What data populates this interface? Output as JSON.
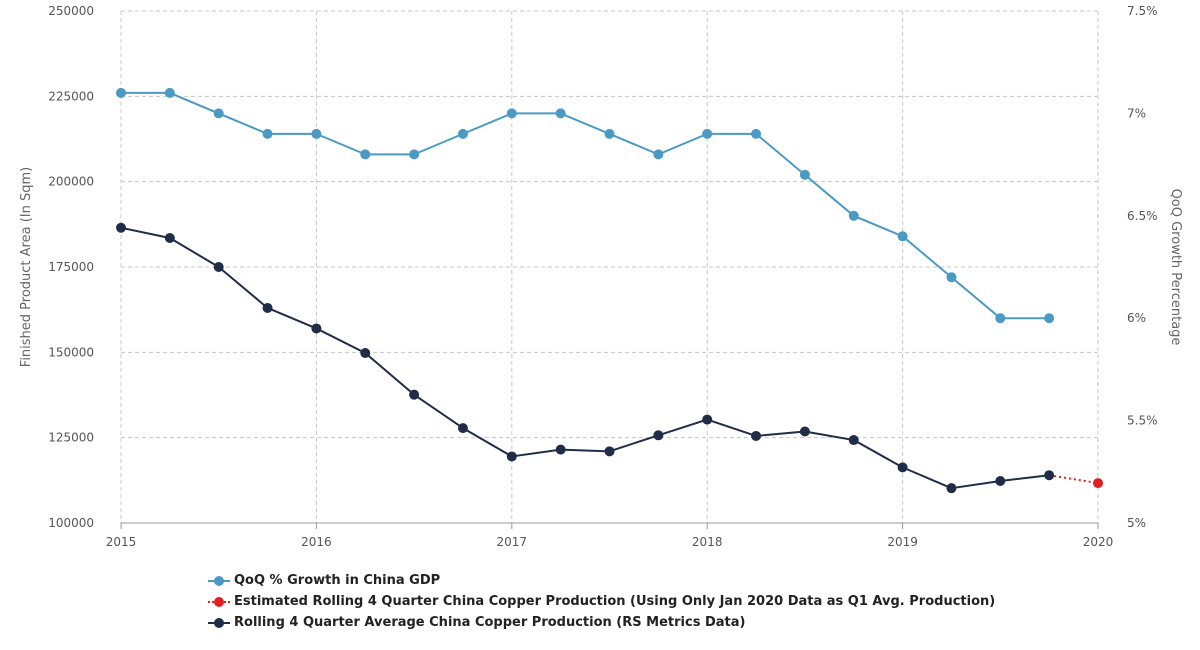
{
  "chart_data": {
    "type": "line",
    "x": [
      "2015",
      "2015.25",
      "2015.5",
      "2015.75",
      "2016",
      "2016.25",
      "2016.5",
      "2016.75",
      "2017",
      "2017.25",
      "2017.5",
      "2017.75",
      "2018",
      "2018.25",
      "2018.5",
      "2018.75",
      "2019",
      "2019.25",
      "2019.5",
      "2019.75",
      "2020"
    ],
    "x_ticks": [
      "2015",
      "2016",
      "2017",
      "2018",
      "2019",
      "2020"
    ],
    "x_range": [
      2015,
      2020
    ],
    "y_left": {
      "label": "Finished Product Area (In Sqm)",
      "range": [
        100000,
        250000
      ],
      "ticks": [
        "100000",
        "125000",
        "150000",
        "175000",
        "200000",
        "225000",
        "250000"
      ]
    },
    "y_right": {
      "label": "QoQ Growth Percentage",
      "range": [
        5.0,
        7.5
      ],
      "ticks": [
        "5%",
        "5.5%",
        "6%",
        "6.5%",
        "7%",
        "7.5%"
      ]
    },
    "grid": true,
    "legend_position": "bottom-left",
    "series": [
      {
        "name": "QoQ % Growth in China GDP",
        "axis": "right",
        "color": "#4a9ac4",
        "style": "solid",
        "points": [
          [
            2015,
            7.1
          ],
          [
            2015.25,
            7.1
          ],
          [
            2015.5,
            7.0
          ],
          [
            2015.75,
            6.9
          ],
          [
            2016,
            6.9
          ],
          [
            2016.25,
            6.8
          ],
          [
            2016.5,
            6.8
          ],
          [
            2016.75,
            6.9
          ],
          [
            2017,
            7.0
          ],
          [
            2017.25,
            7.0
          ],
          [
            2017.5,
            6.9
          ],
          [
            2017.75,
            6.8
          ],
          [
            2018,
            6.9
          ],
          [
            2018.25,
            6.9
          ],
          [
            2018.5,
            6.7
          ],
          [
            2018.75,
            6.5
          ],
          [
            2019,
            6.4
          ],
          [
            2019.25,
            6.2
          ],
          [
            2019.5,
            6.0
          ],
          [
            2019.75,
            6.0
          ]
        ]
      },
      {
        "name": "Estimated Rolling 4 Quarter China Copper Production (Using Only Jan 2020 Data as Q1 Avg. Production)",
        "axis": "left",
        "color": "#e02020",
        "style": "dotted",
        "points": [
          [
            2019.75,
            114000
          ],
          [
            2020,
            111700
          ]
        ],
        "marker_from_index": 1
      },
      {
        "name": "Rolling 4 Quarter Average China Copper Production (RS Metrics Data)",
        "axis": "left",
        "color": "#1f2d48",
        "style": "solid",
        "points": [
          [
            2015,
            186500
          ],
          [
            2015.25,
            183500
          ],
          [
            2015.5,
            175000
          ],
          [
            2015.75,
            163000
          ],
          [
            2016,
            157000
          ],
          [
            2016.25,
            149800
          ],
          [
            2016.5,
            137600
          ],
          [
            2016.75,
            127800
          ],
          [
            2017,
            119500
          ],
          [
            2017.25,
            121500
          ],
          [
            2017.5,
            121000
          ],
          [
            2017.75,
            125700
          ],
          [
            2018,
            130300
          ],
          [
            2018.25,
            125500
          ],
          [
            2018.5,
            126800
          ],
          [
            2018.75,
            124300
          ],
          [
            2019,
            116300
          ],
          [
            2019.25,
            110200
          ],
          [
            2019.5,
            112300
          ],
          [
            2019.75,
            114000
          ]
        ]
      }
    ]
  }
}
